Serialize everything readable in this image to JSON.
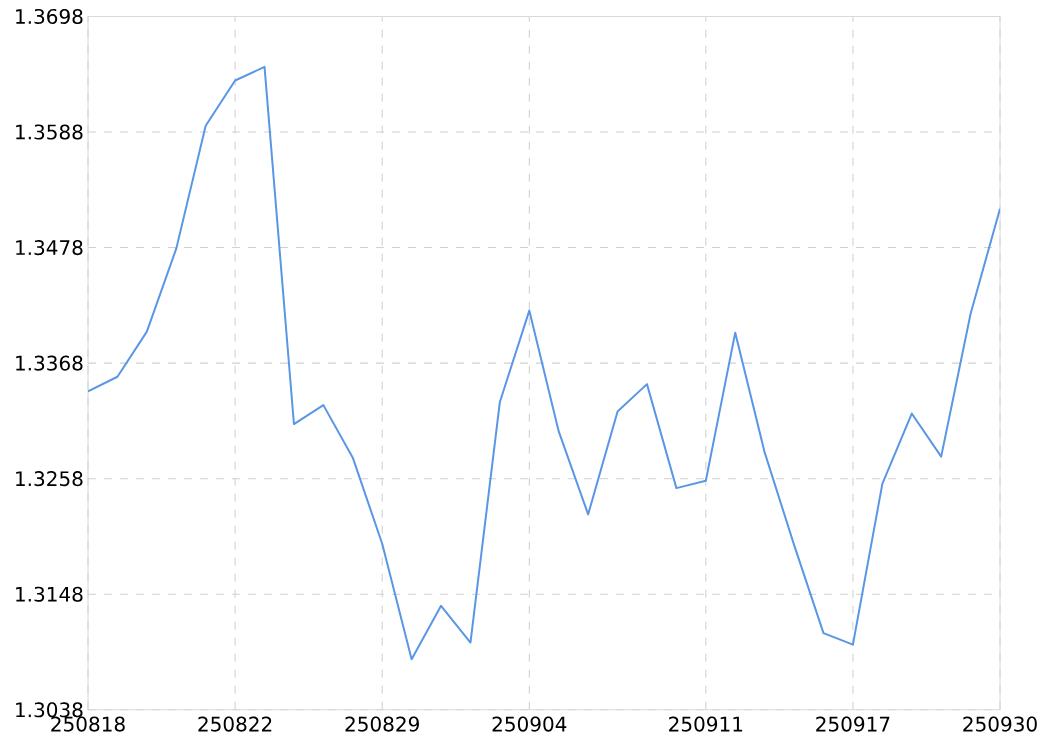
{
  "chart_data": {
    "type": "line",
    "categories": [
      "250818",
      null,
      null,
      null,
      null,
      "250822",
      null,
      null,
      null,
      null,
      "250829",
      null,
      null,
      null,
      null,
      "250904",
      null,
      null,
      null,
      null,
      null,
      "250911",
      null,
      null,
      null,
      null,
      "250917",
      null,
      null,
      null,
      null,
      "250930"
    ],
    "series": [
      {
        "color": "#5a96e6",
        "values": [
          1.3341,
          1.3355,
          1.3398,
          1.3477,
          1.3594,
          1.3637,
          1.365,
          1.331,
          1.3328,
          1.3278,
          1.3196,
          1.3086,
          1.3137,
          1.3102,
          1.3331,
          1.3418,
          1.3303,
          1.3224,
          1.3322,
          1.3348,
          1.3249,
          1.3256,
          1.3397,
          1.3283,
          1.3195,
          1.3111,
          1.31,
          1.3253,
          1.332,
          1.3279,
          1.3415,
          1.3515
        ]
      }
    ],
    "ylim": [
      1.3038,
      1.3698
    ],
    "yticks": [
      1.3038,
      1.3148,
      1.3258,
      1.3368,
      1.3478,
      1.3588,
      1.3698
    ],
    "grid": true,
    "marker": "none",
    "line_style": "solid"
  }
}
